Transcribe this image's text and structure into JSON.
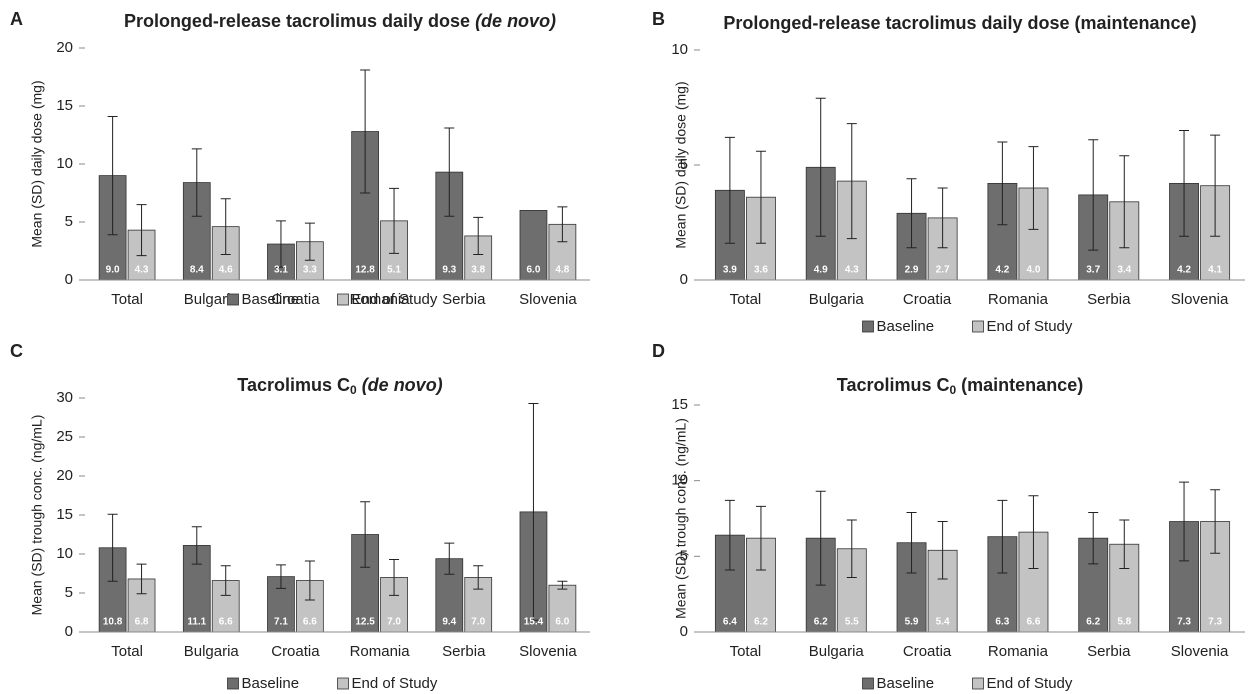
{
  "chart_data": [
    {
      "type": "bar",
      "panel": "A",
      "title": [
        "Prolonged-release tacrolimus daily dose ",
        "(de novo)"
      ],
      "title_style": [
        "normal",
        "italic"
      ],
      "y_label": "Mean (SD) daily dose (mg)",
      "categories": [
        "Total",
        "Bulgaria",
        "Croatia",
        "Romania",
        "Serbia",
        "Slovenia"
      ],
      "ylim": [
        0,
        20
      ],
      "yticks": [
        0,
        5,
        10,
        15,
        20
      ],
      "series": [
        {
          "name": "Baseline",
          "color": "#6e6e6e",
          "values": [
            9.0,
            8.4,
            3.1,
            12.8,
            9.3,
            6.0
          ],
          "value_labels": [
            "9.0",
            "8.4",
            "3.1",
            "12.8",
            "9.3",
            "6.0"
          ],
          "errors": [
            5.1,
            2.9,
            2.0,
            5.3,
            3.8,
            null
          ]
        },
        {
          "name": "End of Study",
          "color": "#c3c3c3",
          "values": [
            4.3,
            4.6,
            3.3,
            5.1,
            3.8,
            4.8
          ],
          "value_labels": [
            "4.3",
            "4.6",
            "3.3",
            "5.1",
            "3.8",
            "4.8"
          ],
          "errors": [
            2.2,
            2.4,
            1.6,
            2.8,
            1.6,
            1.5
          ]
        }
      ]
    },
    {
      "type": "bar",
      "panel": "B",
      "title": [
        "Prolonged-release tacrolimus daily dose (maintenance)"
      ],
      "title_style": [
        "normal"
      ],
      "y_label": "Mean (SD) daily dose (mg)",
      "categories": [
        "Total",
        "Bulgaria",
        "Croatia",
        "Romania",
        "Serbia",
        "Slovenia"
      ],
      "ylim": [
        0,
        10
      ],
      "yticks": [
        0,
        5,
        10
      ],
      "series": [
        {
          "name": "Baseline",
          "color": "#6e6e6e",
          "values": [
            3.9,
            4.9,
            2.9,
            4.2,
            3.7,
            4.2
          ],
          "value_labels": [
            "3.9",
            "4.9",
            "2.9",
            "4.2",
            "3.7",
            "4.2"
          ],
          "errors": [
            2.3,
            3.0,
            1.5,
            1.8,
            2.4,
            2.3
          ]
        },
        {
          "name": "End of Study",
          "color": "#c3c3c3",
          "values": [
            3.6,
            4.3,
            2.7,
            4.0,
            3.4,
            4.1
          ],
          "value_labels": [
            "3.6",
            "4.3",
            "2.7",
            "4.0",
            "3.4",
            "4.1"
          ],
          "errors": [
            2.0,
            2.5,
            1.3,
            1.8,
            2.0,
            2.2
          ]
        }
      ]
    },
    {
      "type": "bar",
      "panel": "C",
      "title": [
        "Tacrolimus C",
        "0",
        " (de novo)"
      ],
      "title_style": [
        "normal",
        "sub",
        "italic"
      ],
      "y_label": "Mean (SD) trough conc. (ng/mL)",
      "categories": [
        "Total",
        "Bulgaria",
        "Croatia",
        "Romania",
        "Serbia",
        "Slovenia"
      ],
      "ylim": [
        0,
        30
      ],
      "yticks": [
        0,
        5,
        10,
        15,
        20,
        25,
        30
      ],
      "series": [
        {
          "name": "Baseline",
          "color": "#6e6e6e",
          "values": [
            10.8,
            11.1,
            7.1,
            12.5,
            9.4,
            15.4
          ],
          "value_labels": [
            "10.8",
            "11.1",
            "7.1",
            "12.5",
            "9.4",
            "15.4"
          ],
          "errors": [
            4.3,
            2.4,
            1.5,
            4.2,
            2.0,
            13.9
          ]
        },
        {
          "name": "End of Study",
          "color": "#c3c3c3",
          "values": [
            6.8,
            6.6,
            6.6,
            7.0,
            7.0,
            6.0
          ],
          "value_labels": [
            "6.8",
            "6.6",
            "6.6",
            "7.0",
            "7.0",
            "6.0"
          ],
          "errors": [
            1.9,
            1.9,
            2.5,
            2.3,
            1.5,
            0.5
          ]
        }
      ]
    },
    {
      "type": "bar",
      "panel": "D",
      "title": [
        "Tacrolimus C",
        "0",
        " (maintenance)"
      ],
      "title_style": [
        "normal",
        "sub",
        "normal"
      ],
      "y_label": "Mean (SD) trough conc. (ng/mL)",
      "categories": [
        "Total",
        "Bulgaria",
        "Croatia",
        "Romania",
        "Serbia",
        "Slovenia"
      ],
      "ylim": [
        0,
        15
      ],
      "yticks": [
        0,
        5,
        10,
        15
      ],
      "series": [
        {
          "name": "Baseline",
          "color": "#6e6e6e",
          "values": [
            6.4,
            6.2,
            5.9,
            6.3,
            6.2,
            7.3
          ],
          "value_labels": [
            "6.4",
            "6.2",
            "5.9",
            "6.3",
            "6.2",
            "7.3"
          ],
          "errors": [
            2.3,
            3.1,
            2.0,
            2.4,
            1.7,
            2.6
          ]
        },
        {
          "name": "End of Study",
          "color": "#c3c3c3",
          "values": [
            6.2,
            5.5,
            5.4,
            6.6,
            5.8,
            7.3
          ],
          "value_labels": [
            "6.2",
            "5.5",
            "5.4",
            "6.6",
            "5.8",
            "7.3"
          ],
          "errors": [
            2.1,
            1.9,
            1.9,
            2.4,
            1.6,
            2.1
          ]
        }
      ]
    }
  ]
}
